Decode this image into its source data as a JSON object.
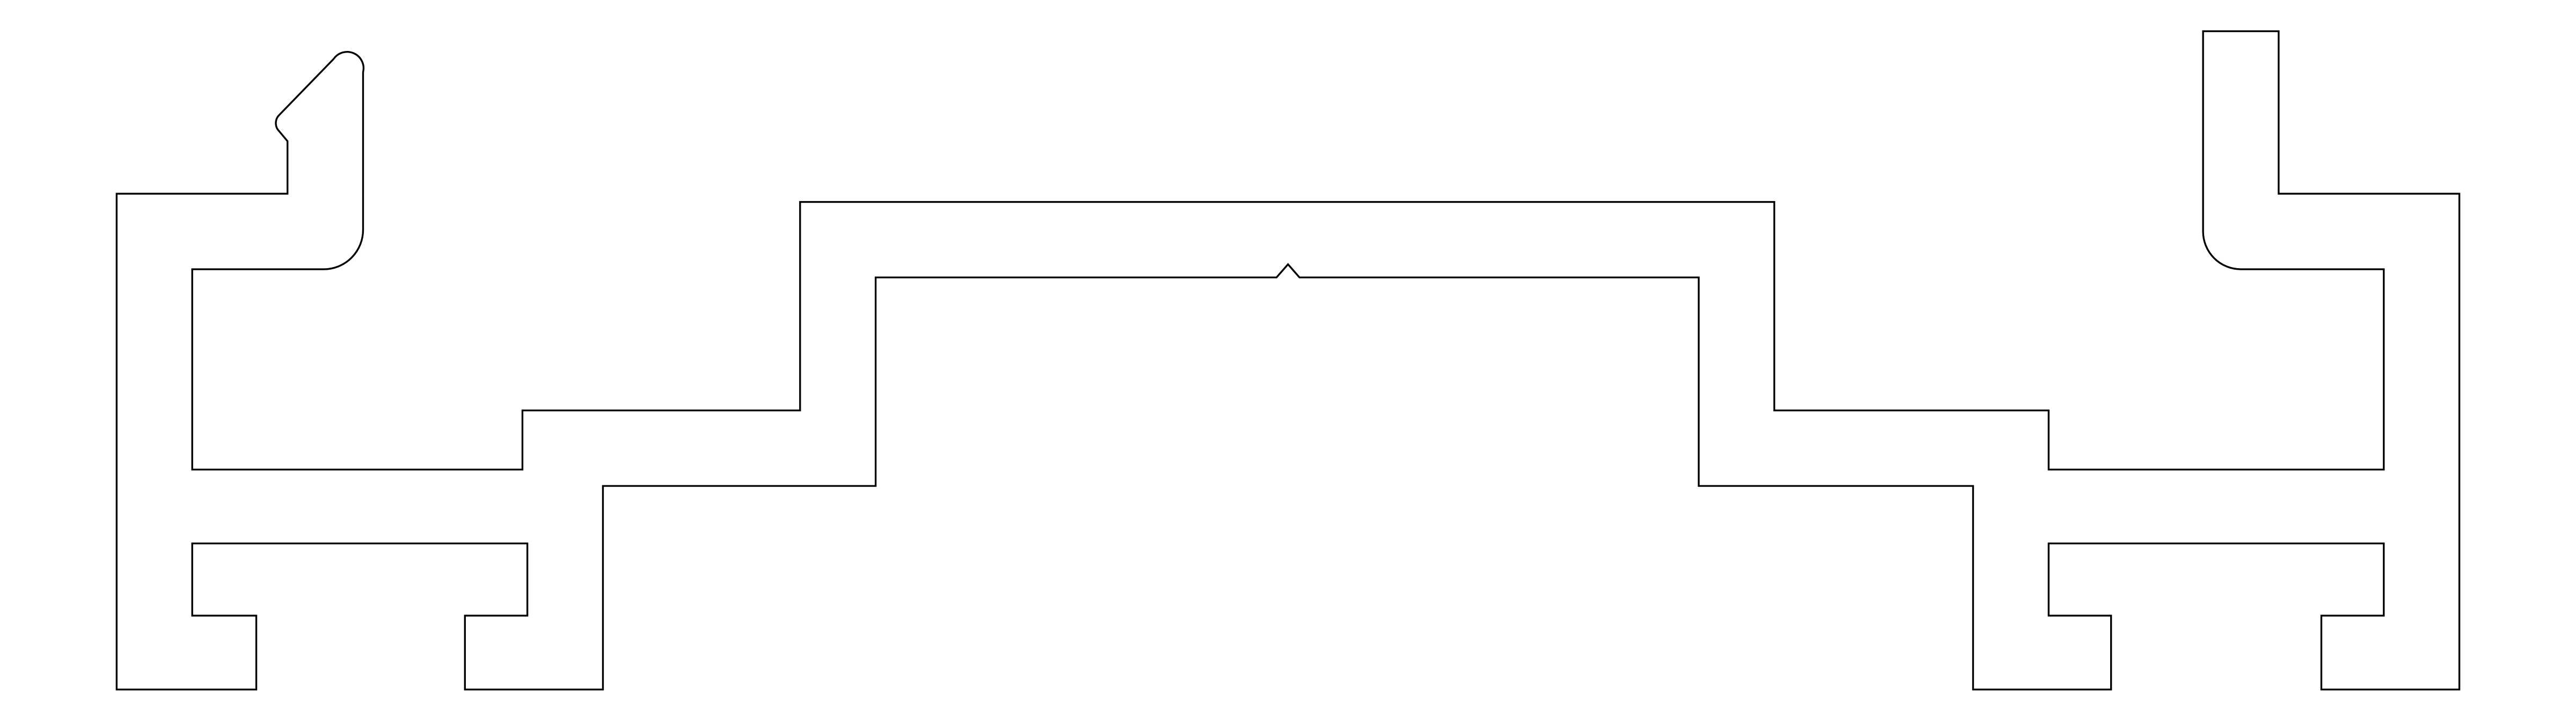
{
  "drawing": {
    "background_color": "#ffffff",
    "line_color": "#000000"
  }
}
